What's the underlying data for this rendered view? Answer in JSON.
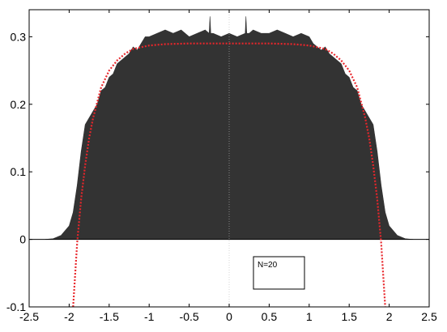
{
  "chart_data": {
    "type": "area",
    "title": "",
    "xlabel": "",
    "ylabel": "",
    "xlim": [
      -2.5,
      2.5
    ],
    "ylim": [
      -0.1,
      0.34
    ],
    "grid": false,
    "x_ticks": [
      -2.5,
      -2,
      -1.5,
      -1,
      -0.5,
      0,
      0.5,
      1,
      1.5,
      2,
      2.5
    ],
    "x_tick_labels": [
      "-2.5",
      "-2",
      "-1.5",
      "-1",
      "-0.5",
      "0",
      "0.5",
      "1",
      "1.5",
      "2",
      "2.5"
    ],
    "y_ticks": [
      -0.1,
      0,
      0.1,
      0.2,
      0.3
    ],
    "y_tick_labels": [
      "-0.1",
      "0",
      "0.1",
      "0.2",
      "0.3"
    ],
    "legend": {
      "placement": "bottom-center",
      "text": "N=20"
    },
    "colors": {
      "histogram": "#333333",
      "fit_curve": "#e8262b",
      "axes": "#000000"
    },
    "series": [
      {
        "kind": "histogram",
        "x": [
          -2.3,
          -2.2,
          -2.1,
          -2.0,
          -1.95,
          -1.9,
          -1.85,
          -1.8,
          -1.75,
          -1.7,
          -1.65,
          -1.6,
          -1.55,
          -1.5,
          -1.45,
          -1.4,
          -1.35,
          -1.3,
          -1.25,
          -1.2,
          -1.15,
          -1.1,
          -1.05,
          -1.0,
          -0.9,
          -0.8,
          -0.7,
          -0.6,
          -0.5,
          -0.4,
          -0.3,
          -0.25,
          -0.24,
          -0.23,
          -0.2,
          -0.1,
          0.0,
          0.1,
          0.2,
          0.21,
          0.22,
          0.25,
          0.3,
          0.4,
          0.5,
          0.6,
          0.7,
          0.8,
          0.9,
          1.0,
          1.05,
          1.1,
          1.15,
          1.2,
          1.25,
          1.3,
          1.35,
          1.4,
          1.45,
          1.5,
          1.55,
          1.6,
          1.65,
          1.7,
          1.75,
          1.8,
          1.85,
          1.9,
          1.95,
          2.0,
          2.1,
          2.2,
          2.3
        ],
        "y": [
          0.0,
          0.001,
          0.006,
          0.02,
          0.04,
          0.08,
          0.13,
          0.17,
          0.18,
          0.19,
          0.2,
          0.22,
          0.225,
          0.24,
          0.245,
          0.26,
          0.265,
          0.27,
          0.275,
          0.285,
          0.28,
          0.29,
          0.3,
          0.3,
          0.305,
          0.31,
          0.305,
          0.31,
          0.3,
          0.305,
          0.31,
          0.305,
          0.33,
          0.305,
          0.305,
          0.3,
          0.305,
          0.3,
          0.305,
          0.33,
          0.305,
          0.305,
          0.31,
          0.305,
          0.305,
          0.31,
          0.305,
          0.3,
          0.305,
          0.3,
          0.29,
          0.285,
          0.28,
          0.285,
          0.275,
          0.27,
          0.265,
          0.26,
          0.245,
          0.24,
          0.225,
          0.22,
          0.2,
          0.19,
          0.18,
          0.17,
          0.13,
          0.08,
          0.04,
          0.02,
          0.006,
          0.001,
          0.0
        ]
      },
      {
        "kind": "fit_curve",
        "x": [
          -1.95,
          -1.9,
          -1.85,
          -1.8,
          -1.75,
          -1.7,
          -1.6,
          -1.5,
          -1.4,
          -1.3,
          -1.2,
          -1.0,
          -0.8,
          -0.5,
          0.0,
          0.5,
          0.8,
          1.0,
          1.2,
          1.3,
          1.4,
          1.5,
          1.6,
          1.7,
          1.75,
          1.8,
          1.85,
          1.9,
          1.95
        ],
        "y": [
          -0.1,
          -0.005,
          0.06,
          0.11,
          0.15,
          0.18,
          0.225,
          0.25,
          0.265,
          0.275,
          0.282,
          0.287,
          0.289,
          0.29,
          0.29,
          0.29,
          0.289,
          0.287,
          0.282,
          0.275,
          0.265,
          0.25,
          0.225,
          0.18,
          0.15,
          0.11,
          0.06,
          -0.005,
          -0.1
        ]
      }
    ]
  }
}
